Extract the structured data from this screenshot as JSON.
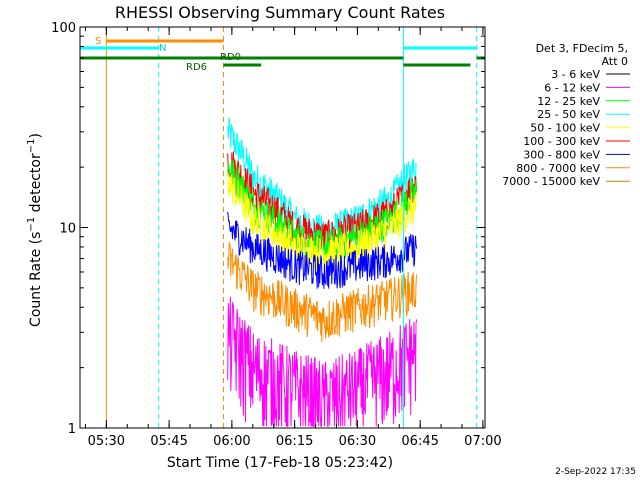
{
  "chart_data": {
    "type": "line",
    "title": "RHESSI Observing Summary Count Rates",
    "xlabel": "Start Time (17-Feb-18 05:23:42)",
    "ylabel": "Count Rate (s⁻¹ detector⁻¹)",
    "y_scale": "log",
    "ylim": [
      1,
      100
    ],
    "xlim": [
      "05:23:42",
      "07:00:30"
    ],
    "x_ticks": [
      "05:30",
      "05:45",
      "06:00",
      "06:15",
      "06:30",
      "06:45",
      "07:00"
    ],
    "y_ticks": [
      "1",
      "10",
      "100"
    ],
    "legend": {
      "position": "right",
      "header": [
        "Det 3, FDecim 5,",
        "Att 0"
      ],
      "entries": [
        {
          "label": "3 - 6 keV",
          "color": "#000000"
        },
        {
          "label": "6 - 12 keV",
          "color": "#ff00ff"
        },
        {
          "label": "12 - 25 keV",
          "color": "#00ff00"
        },
        {
          "label": "25 - 50 keV",
          "color": "#00ffff"
        },
        {
          "label": "50 - 100 keV",
          "color": "#ffff00"
        },
        {
          "label": "100 - 300 keV",
          "color": "#ff0000"
        },
        {
          "label": "300 - 800 keV",
          "color": "#0000ff"
        },
        {
          "label": "800 - 7000 keV",
          "color": "#ff8c00"
        },
        {
          "label": "7000 - 15000 keV",
          "color": "#b8860b"
        }
      ]
    },
    "series_profile": {
      "x": [
        "05:59",
        "06:05",
        "06:15",
        "06:22",
        "06:30",
        "06:38",
        "06:44"
      ],
      "series": [
        {
          "color": "#00ffff",
          "values": [
            30,
            18,
            11,
            9.5,
            11,
            14,
            20
          ]
        },
        {
          "color": "#ff0000",
          "values": [
            22,
            15,
            10,
            9,
            10,
            12,
            17
          ]
        },
        {
          "color": "#00ff00",
          "values": [
            20,
            13,
            9,
            8,
            9,
            11,
            15
          ]
        },
        {
          "color": "#ffff00",
          "values": [
            17,
            11,
            8,
            7.5,
            8,
            10,
            13
          ]
        },
        {
          "color": "#0000ff",
          "values": [
            10,
            8,
            6.5,
            6,
            6.5,
            7,
            8
          ]
        },
        {
          "color": "#ff8c00",
          "values": [
            7,
            5,
            4,
            3.5,
            4,
            4.5,
            5
          ]
        },
        {
          "color": "#ff00ff",
          "values": [
            3,
            2,
            1.6,
            1.4,
            1.6,
            2,
            2.5
          ]
        }
      ]
    },
    "flag_bars": [
      {
        "label": "S",
        "color": "#ff8c00",
        "level": "top",
        "segments": [
          [
            "05:30:00",
            "05:58:00"
          ]
        ]
      },
      {
        "label": "N",
        "color": "#00ffff",
        "level": "mid",
        "segments": [
          [
            "05:23:42",
            "05:42:30"
          ],
          [
            "06:41:00",
            "06:58:30"
          ]
        ]
      },
      {
        "label": "RD0",
        "color": "#008000",
        "level": "low",
        "segments": [
          [
            "05:23:42",
            "06:41:00"
          ],
          [
            "06:58:30",
            "07:00:30"
          ]
        ]
      },
      {
        "label": "RD6",
        "color": "#008000",
        "level": "lower",
        "segments": [
          [
            "05:58:00",
            "06:07:00"
          ],
          [
            "06:41:00",
            "06:57:00"
          ]
        ]
      }
    ],
    "event_lines": [
      {
        "time": "05:23:42",
        "color": "#00ffff",
        "style": "solid"
      },
      {
        "time": "05:30:00",
        "color": "#ff8c00",
        "style": "solid"
      },
      {
        "time": "05:42:30",
        "color": "#00ffff",
        "style": "dashed"
      },
      {
        "time": "05:58:00",
        "color": "#ff8c00",
        "style": "dashed"
      },
      {
        "time": "06:41:00",
        "color": "#00ffff",
        "style": "solid"
      },
      {
        "time": "06:58:30",
        "color": "#00ffff",
        "style": "dashed"
      }
    ],
    "footer": "2-Sep-2022 17:35"
  }
}
